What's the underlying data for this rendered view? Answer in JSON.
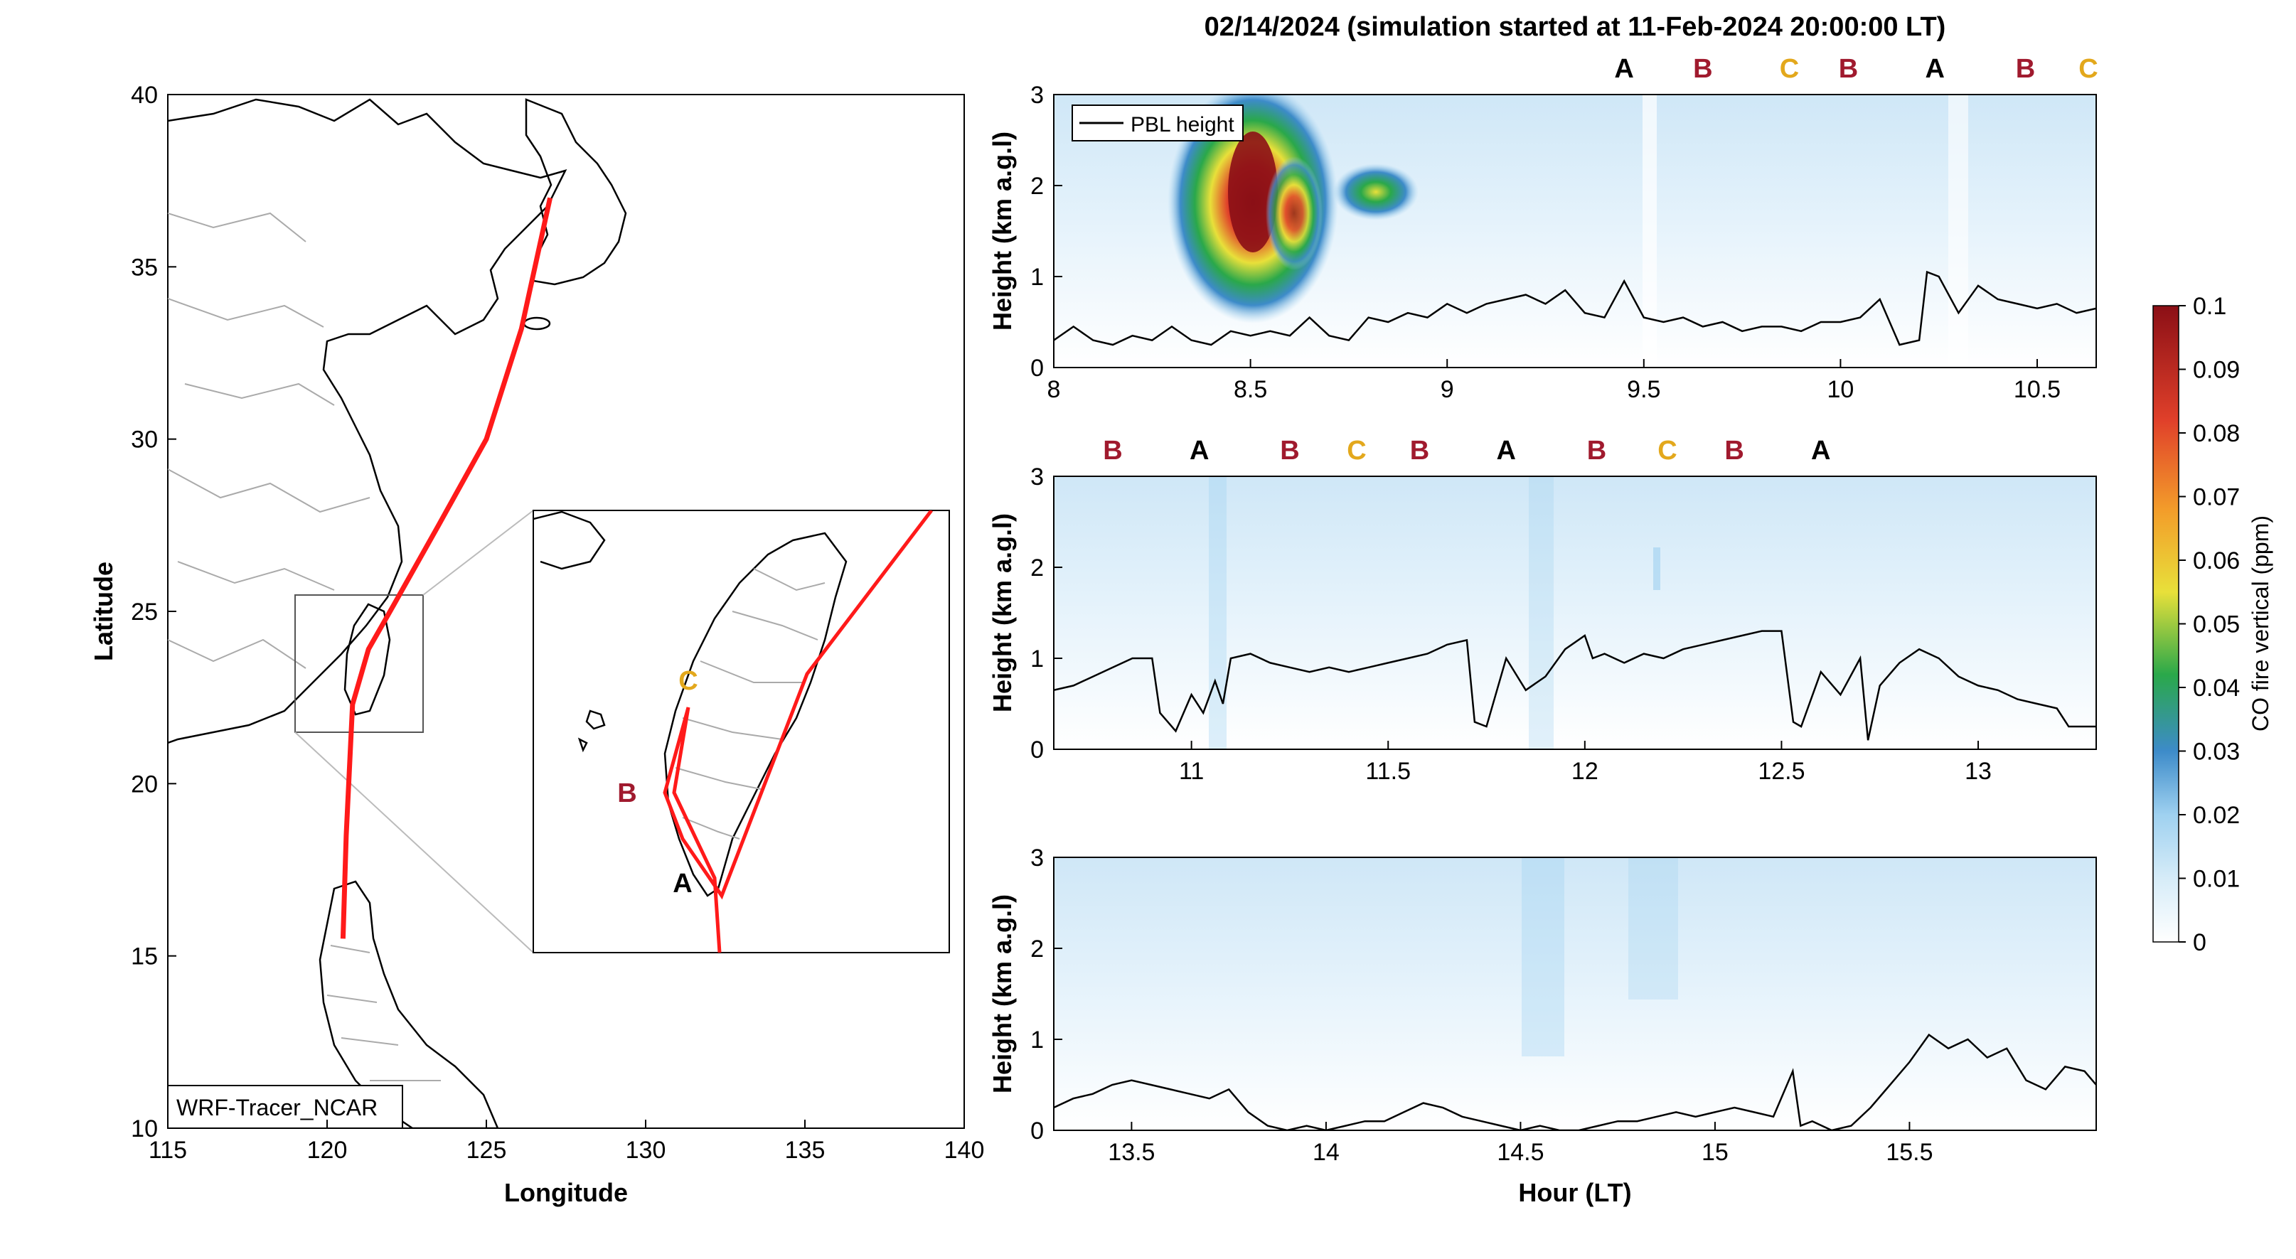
{
  "chart_data": {
    "title": "02/14/2024 (simulation started at 11-Feb-2024 20:00:00 LT)",
    "panels": [
      {
        "type": "map",
        "xlabel": "Longitude",
        "ylabel": "Latitude",
        "xlim": [
          115,
          140
        ],
        "ylim": [
          10,
          40
        ],
        "xticks": [
          "115",
          "120",
          "125",
          "130",
          "135",
          "140"
        ],
        "yticks": [
          "10",
          "15",
          "20",
          "25",
          "30",
          "35",
          "40"
        ],
        "annotation": "WRF-Tracer_NCAR",
        "flight_track": [
          [
            127.0,
            37.0
          ],
          [
            126.1,
            33.2
          ],
          [
            125.0,
            30.0
          ],
          [
            123.5,
            27.5
          ],
          [
            122.1,
            25.2
          ],
          [
            121.3,
            23.9
          ],
          [
            120.8,
            22.3
          ],
          [
            120.6,
            18.5
          ],
          [
            120.5,
            15.5
          ]
        ],
        "inset_markers": [
          {
            "label": "A",
            "color": "#000000"
          },
          {
            "label": "B",
            "color": "#a01a2e"
          },
          {
            "label": "C",
            "color": "#e3a81c"
          }
        ],
        "grid": false
      },
      {
        "type": "heatmap",
        "ylabel": "Height (km a.g.l)",
        "xlim": [
          8.0,
          10.65
        ],
        "ylim": [
          0,
          3
        ],
        "xticks": [
          "8",
          "8.5",
          "9",
          "9.5",
          "10",
          "10.5"
        ],
        "yticks": [
          "0",
          "1",
          "2",
          "3"
        ],
        "legend": "PBL height",
        "legend_position": "top-left",
        "markers": [
          {
            "label": "A",
            "x": 9.45,
            "color": "#000000"
          },
          {
            "label": "B",
            "x": 9.65,
            "color": "#a01a2e"
          },
          {
            "label": "C",
            "x": 9.87,
            "color": "#e3a81c"
          },
          {
            "label": "B",
            "x": 10.02,
            "color": "#a01a2e"
          },
          {
            "label": "A",
            "x": 10.24,
            "color": "#000000"
          },
          {
            "label": "B",
            "x": 10.47,
            "color": "#a01a2e"
          },
          {
            "label": "C",
            "x": 10.63,
            "color": "#e3a81c"
          }
        ],
        "pbl_height": [
          [
            8.0,
            0.3
          ],
          [
            8.05,
            0.45
          ],
          [
            8.1,
            0.3
          ],
          [
            8.15,
            0.25
          ],
          [
            8.2,
            0.35
          ],
          [
            8.25,
            0.3
          ],
          [
            8.3,
            0.45
          ],
          [
            8.35,
            0.3
          ],
          [
            8.4,
            0.25
          ],
          [
            8.45,
            0.4
          ],
          [
            8.5,
            0.35
          ],
          [
            8.55,
            0.4
          ],
          [
            8.6,
            0.35
          ],
          [
            8.65,
            0.55
          ],
          [
            8.7,
            0.35
          ],
          [
            8.75,
            0.3
          ],
          [
            8.8,
            0.55
          ],
          [
            8.85,
            0.5
          ],
          [
            8.9,
            0.6
          ],
          [
            8.95,
            0.55
          ],
          [
            9.0,
            0.7
          ],
          [
            9.05,
            0.6
          ],
          [
            9.1,
            0.7
          ],
          [
            9.15,
            0.75
          ],
          [
            9.2,
            0.8
          ],
          [
            9.25,
            0.7
          ],
          [
            9.3,
            0.85
          ],
          [
            9.35,
            0.6
          ],
          [
            9.4,
            0.55
          ],
          [
            9.45,
            0.95
          ],
          [
            9.5,
            0.55
          ],
          [
            9.55,
            0.5
          ],
          [
            9.6,
            0.55
          ],
          [
            9.65,
            0.45
          ],
          [
            9.7,
            0.5
          ],
          [
            9.75,
            0.4
          ],
          [
            9.8,
            0.45
          ],
          [
            9.85,
            0.45
          ],
          [
            9.9,
            0.4
          ],
          [
            9.95,
            0.5
          ],
          [
            10.0,
            0.5
          ],
          [
            10.05,
            0.55
          ],
          [
            10.1,
            0.75
          ],
          [
            10.15,
            0.25
          ],
          [
            10.2,
            0.3
          ],
          [
            10.22,
            1.05
          ],
          [
            10.25,
            1.0
          ],
          [
            10.3,
            0.6
          ],
          [
            10.35,
            0.9
          ],
          [
            10.4,
            0.75
          ],
          [
            10.45,
            0.7
          ],
          [
            10.5,
            0.65
          ],
          [
            10.55,
            0.7
          ],
          [
            10.6,
            0.6
          ],
          [
            10.65,
            0.65
          ]
        ],
        "co_plume": [
          {
            "x": 8.5,
            "y": 1.9,
            "value": 0.1
          },
          {
            "x": 8.8,
            "y": 1.9,
            "value": 0.045
          }
        ]
      },
      {
        "type": "heatmap",
        "ylabel": "Height (km a.g.l)",
        "xlim": [
          10.65,
          13.3
        ],
        "ylim": [
          0,
          3
        ],
        "xticks": [
          "11",
          "11.5",
          "12",
          "12.5",
          "13"
        ],
        "yticks": [
          "0",
          "1",
          "2",
          "3"
        ],
        "markers": [
          {
            "label": "B",
            "x": 10.8,
            "color": "#a01a2e"
          },
          {
            "label": "A",
            "x": 11.02,
            "color": "#000000"
          },
          {
            "label": "B",
            "x": 11.25,
            "color": "#a01a2e"
          },
          {
            "label": "C",
            "x": 11.42,
            "color": "#e3a81c"
          },
          {
            "label": "B",
            "x": 11.58,
            "color": "#a01a2e"
          },
          {
            "label": "A",
            "x": 11.8,
            "color": "#000000"
          },
          {
            "label": "B",
            "x": 12.03,
            "color": "#a01a2e"
          },
          {
            "label": "C",
            "x": 12.21,
            "color": "#e3a81c"
          },
          {
            "label": "B",
            "x": 12.38,
            "color": "#a01a2e"
          },
          {
            "label": "A",
            "x": 12.6,
            "color": "#000000"
          }
        ],
        "pbl_height": [
          [
            10.65,
            0.65
          ],
          [
            10.7,
            0.7
          ],
          [
            10.75,
            0.8
          ],
          [
            10.8,
            0.9
          ],
          [
            10.85,
            1.0
          ],
          [
            10.9,
            1.0
          ],
          [
            10.92,
            0.4
          ],
          [
            10.96,
            0.2
          ],
          [
            11.0,
            0.6
          ],
          [
            11.03,
            0.4
          ],
          [
            11.06,
            0.75
          ],
          [
            11.08,
            0.5
          ],
          [
            11.1,
            1.0
          ],
          [
            11.15,
            1.05
          ],
          [
            11.2,
            0.95
          ],
          [
            11.25,
            0.9
          ],
          [
            11.3,
            0.85
          ],
          [
            11.35,
            0.9
          ],
          [
            11.4,
            0.85
          ],
          [
            11.45,
            0.9
          ],
          [
            11.5,
            0.95
          ],
          [
            11.55,
            1.0
          ],
          [
            11.6,
            1.05
          ],
          [
            11.65,
            1.15
          ],
          [
            11.7,
            1.2
          ],
          [
            11.72,
            0.3
          ],
          [
            11.75,
            0.25
          ],
          [
            11.8,
            1.0
          ],
          [
            11.85,
            0.65
          ],
          [
            11.9,
            0.8
          ],
          [
            11.95,
            1.1
          ],
          [
            12.0,
            1.25
          ],
          [
            12.02,
            1.0
          ],
          [
            12.05,
            1.05
          ],
          [
            12.1,
            0.95
          ],
          [
            12.15,
            1.05
          ],
          [
            12.2,
            1.0
          ],
          [
            12.25,
            1.1
          ],
          [
            12.3,
            1.15
          ],
          [
            12.35,
            1.2
          ],
          [
            12.4,
            1.25
          ],
          [
            12.45,
            1.3
          ],
          [
            12.5,
            1.3
          ],
          [
            12.53,
            0.3
          ],
          [
            12.55,
            0.25
          ],
          [
            12.6,
            0.85
          ],
          [
            12.65,
            0.6
          ],
          [
            12.7,
            1.0
          ],
          [
            12.72,
            0.1
          ],
          [
            12.75,
            0.7
          ],
          [
            12.8,
            0.95
          ],
          [
            12.85,
            1.1
          ],
          [
            12.9,
            1.0
          ],
          [
            12.95,
            0.8
          ],
          [
            13.0,
            0.7
          ],
          [
            13.05,
            0.65
          ],
          [
            13.1,
            0.55
          ],
          [
            13.15,
            0.5
          ],
          [
            13.2,
            0.45
          ],
          [
            13.23,
            0.25
          ],
          [
            13.3,
            0.25
          ]
        ]
      },
      {
        "type": "heatmap",
        "xlabel": "Hour (LT)",
        "ylabel": "Height (km a.g.l)",
        "xlim": [
          13.3,
          15.98
        ],
        "ylim": [
          0,
          3
        ],
        "xticks": [
          "13.5",
          "14",
          "14.5",
          "15",
          "15.5"
        ],
        "yticks": [
          "0",
          "1",
          "2",
          "3"
        ],
        "pbl_height": [
          [
            13.3,
            0.25
          ],
          [
            13.35,
            0.35
          ],
          [
            13.4,
            0.4
          ],
          [
            13.45,
            0.5
          ],
          [
            13.5,
            0.55
          ],
          [
            13.55,
            0.5
          ],
          [
            13.6,
            0.45
          ],
          [
            13.65,
            0.4
          ],
          [
            13.7,
            0.35
          ],
          [
            13.75,
            0.45
          ],
          [
            13.8,
            0.2
          ],
          [
            13.85,
            0.05
          ],
          [
            13.9,
            0.0
          ],
          [
            13.95,
            0.05
          ],
          [
            14.0,
            0.0
          ],
          [
            14.05,
            0.05
          ],
          [
            14.1,
            0.1
          ],
          [
            14.15,
            0.1
          ],
          [
            14.2,
            0.2
          ],
          [
            14.25,
            0.3
          ],
          [
            14.3,
            0.25
          ],
          [
            14.35,
            0.15
          ],
          [
            14.4,
            0.1
          ],
          [
            14.45,
            0.05
          ],
          [
            14.5,
            0.0
          ],
          [
            14.55,
            0.05
          ],
          [
            14.6,
            0.0
          ],
          [
            14.65,
            0.0
          ],
          [
            14.7,
            0.05
          ],
          [
            14.75,
            0.1
          ],
          [
            14.8,
            0.1
          ],
          [
            14.85,
            0.15
          ],
          [
            14.9,
            0.2
          ],
          [
            14.95,
            0.15
          ],
          [
            15.0,
            0.2
          ],
          [
            15.05,
            0.25
          ],
          [
            15.1,
            0.2
          ],
          [
            15.15,
            0.15
          ],
          [
            15.2,
            0.65
          ],
          [
            15.22,
            0.05
          ],
          [
            15.25,
            0.1
          ],
          [
            15.3,
            0.0
          ],
          [
            15.35,
            0.05
          ],
          [
            15.4,
            0.25
          ],
          [
            15.45,
            0.5
          ],
          [
            15.5,
            0.75
          ],
          [
            15.55,
            1.05
          ],
          [
            15.6,
            0.9
          ],
          [
            15.65,
            1.0
          ],
          [
            15.7,
            0.8
          ],
          [
            15.75,
            0.9
          ],
          [
            15.8,
            0.55
          ],
          [
            15.85,
            0.45
          ],
          [
            15.9,
            0.7
          ],
          [
            15.95,
            0.65
          ],
          [
            15.98,
            0.5
          ]
        ]
      }
    ],
    "colorbar": {
      "label": "CO fire vertical (ppm)",
      "ticks": [
        "0",
        "0.01",
        "0.02",
        "0.03",
        "0.04",
        "0.05",
        "0.06",
        "0.07",
        "0.08",
        "0.09",
        "0.1"
      ],
      "range": [
        0,
        0.1
      ],
      "colors": [
        "#ffffff",
        "#d6ecf8",
        "#9fd1f0",
        "#3d8bc9",
        "#2aa84a",
        "#e8e03a",
        "#f39c2a",
        "#e0402a",
        "#8b0f16"
      ]
    }
  }
}
